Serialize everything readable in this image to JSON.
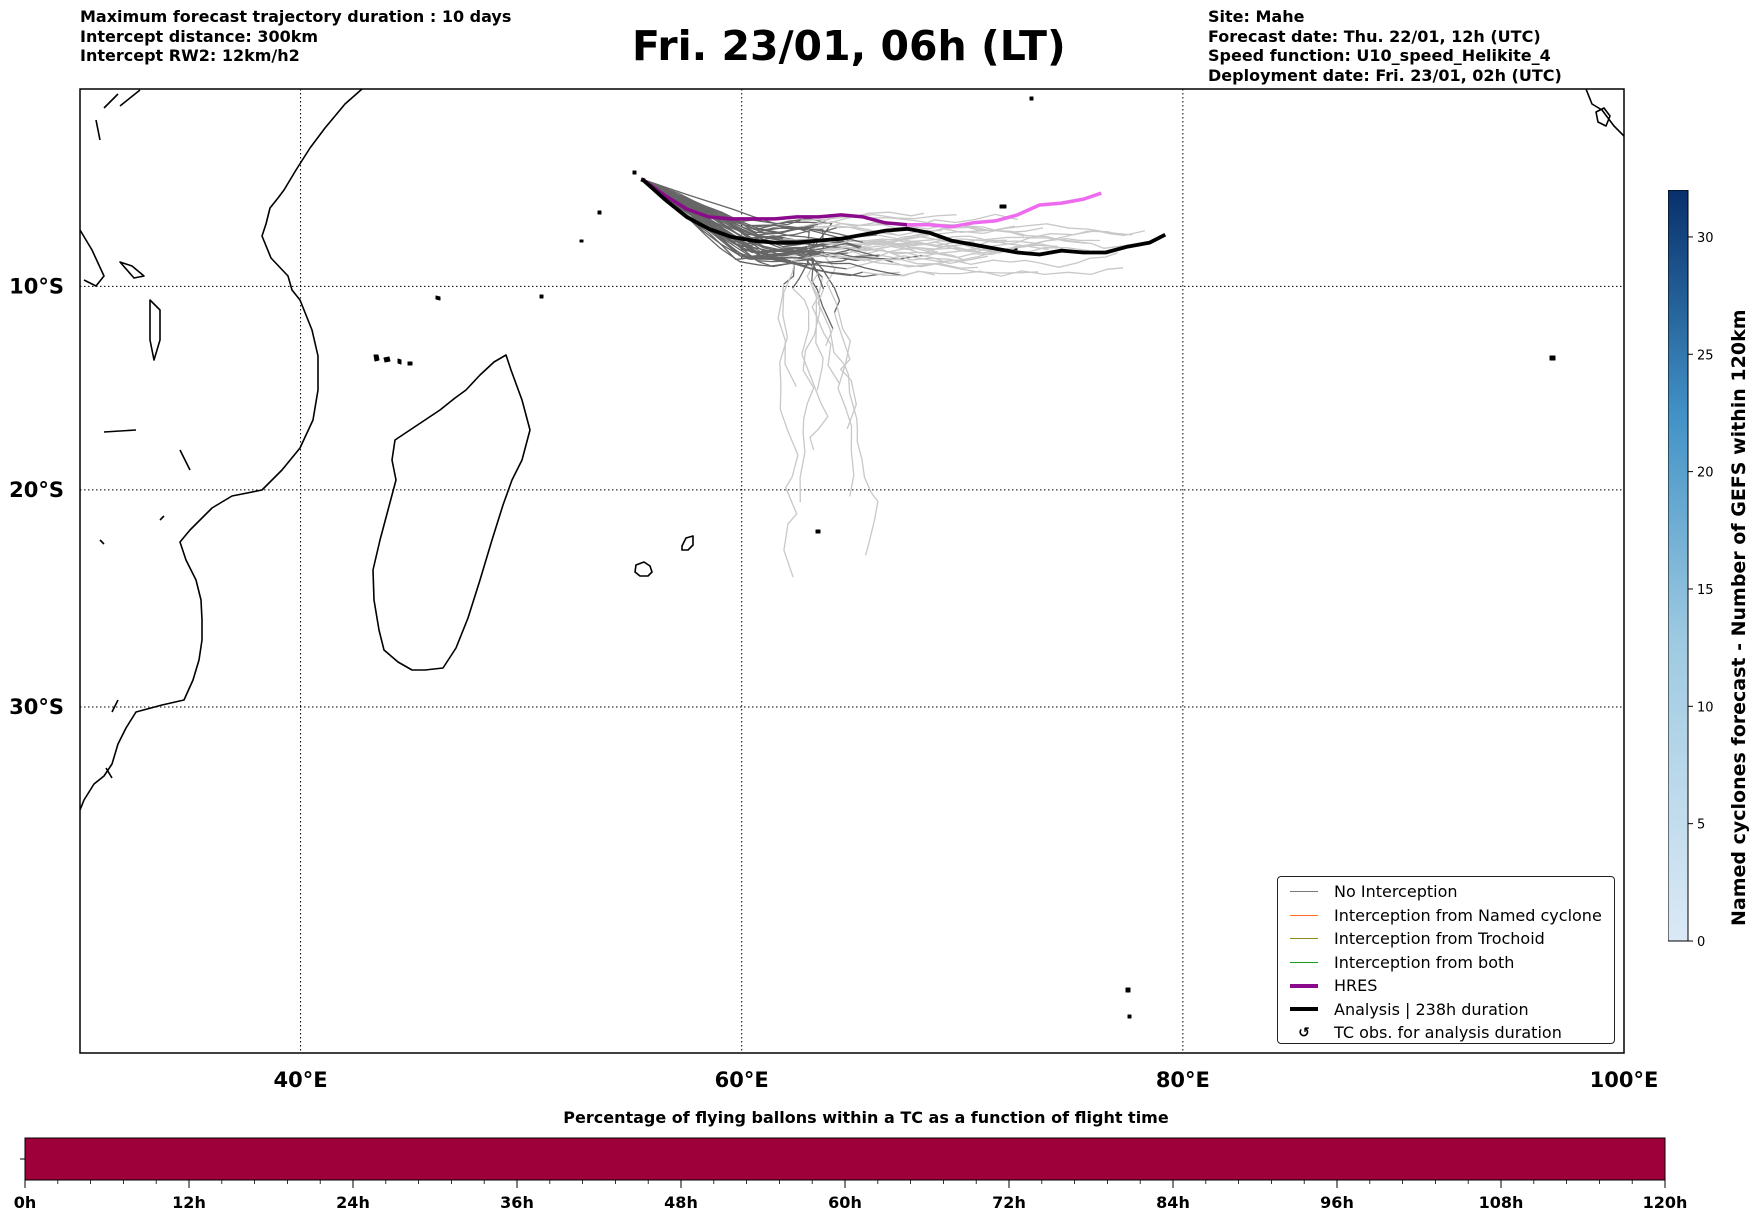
{
  "header": {
    "left_lines": [
      "Maximum forecast trajectory duration : 10 days",
      "Intercept distance: 300km",
      "Intercept RW2: 12km/h2"
    ],
    "title": "Fri. 23/01, 06h (LT)",
    "right_lines": [
      "Site: Mahe",
      "Forecast date: Thu. 22/01, 12h (UTC)",
      "Speed function: U10_speed_Helikite_4",
      "Deployment date: Fri. 23/01, 02h (UTC)"
    ]
  },
  "map": {
    "lon_range": [
      30,
      100
    ],
    "lat_range": [
      -44,
      0
    ],
    "lon_ticks": [
      {
        "value": 40,
        "label": "40°E"
      },
      {
        "value": 60,
        "label": "60°E"
      },
      {
        "value": 80,
        "label": "80°E"
      },
      {
        "value": 100,
        "label": "100°E"
      }
    ],
    "lat_ticks": [
      {
        "value": -10,
        "label": "10°S"
      },
      {
        "value": -20,
        "label": "20°S"
      },
      {
        "value": -30,
        "label": "30°S"
      }
    ],
    "gridlines": "dotted"
  },
  "legend": {
    "items": [
      {
        "label": "No Interception",
        "color": "#777777",
        "style": "thin"
      },
      {
        "label": "Interception from Named cyclone",
        "color": "#ff6a2a",
        "style": "thin"
      },
      {
        "label": "Interception from Trochoid",
        "color": "#8a8a1a",
        "style": "thin"
      },
      {
        "label": "Interception from both",
        "color": "#1a9a1a",
        "style": "thin"
      },
      {
        "label": "HRES",
        "color": "#8b0a8b",
        "style": "thick"
      },
      {
        "label": "Analysis | 238h duration",
        "color": "#000000",
        "style": "thick"
      },
      {
        "label": "TC obs. for analysis duration",
        "color": "#000000",
        "style": "symbol",
        "symbol": "↺"
      }
    ]
  },
  "colorbar_vertical": {
    "label": "Named cyclones forecast - Number of GEFS within 120km",
    "range": [
      0,
      32
    ],
    "ticks": [
      "0",
      "5",
      "10",
      "15",
      "20",
      "25",
      "30"
    ],
    "colors": [
      "#dbe9f6",
      "#08306b"
    ]
  },
  "colorbar_horizontal": {
    "title": "Percentage of flying ballons within a TC as a function of flight time",
    "fill_color": "#9e003a",
    "ticks": [
      "0h",
      "12h",
      "24h",
      "36h",
      "48h",
      "60h",
      "72h",
      "84h",
      "96h",
      "108h",
      "120h"
    ],
    "minor_per_major": 4
  },
  "trajectories": {
    "start": [
      55.5,
      -4.6
    ],
    "hres": [
      [
        55.5,
        -4.6
      ],
      [
        56.5,
        -5.4
      ],
      [
        57.5,
        -6.1
      ],
      [
        58.5,
        -6.5
      ],
      [
        59.5,
        -6.6
      ],
      [
        60.5,
        -6.6
      ],
      [
        61.5,
        -6.6
      ],
      [
        62.5,
        -6.5
      ],
      [
        63.5,
        -6.5
      ],
      [
        64.5,
        -6.4
      ],
      [
        65.5,
        -6.5
      ],
      [
        66.5,
        -6.8
      ],
      [
        67.5,
        -6.9
      ],
      [
        68.5,
        -6.9
      ],
      [
        69.5,
        -7.0
      ],
      [
        70.5,
        -6.8
      ],
      [
        71.5,
        -6.7
      ],
      [
        72.5,
        -6.4
      ],
      [
        73.5,
        -5.9
      ],
      [
        74.5,
        -5.8
      ],
      [
        75.5,
        -5.6
      ],
      [
        76.3,
        -5.3
      ]
    ],
    "hres_split_index": 12,
    "hres_late_color": "#ee6aee",
    "analysis": [
      [
        55.5,
        -4.6
      ],
      [
        56.5,
        -5.6
      ],
      [
        57.5,
        -6.5
      ],
      [
        58.5,
        -7.1
      ],
      [
        59.5,
        -7.5
      ],
      [
        60.5,
        -7.7
      ],
      [
        61.5,
        -7.8
      ],
      [
        62.5,
        -7.8
      ],
      [
        63.5,
        -7.7
      ],
      [
        64.5,
        -7.6
      ],
      [
        65.5,
        -7.4
      ],
      [
        66.5,
        -7.2
      ],
      [
        67.5,
        -7.1
      ],
      [
        68.5,
        -7.3
      ],
      [
        69.5,
        -7.7
      ],
      [
        70.5,
        -7.9
      ],
      [
        71.5,
        -8.1
      ],
      [
        72.5,
        -8.3
      ],
      [
        73.5,
        -8.4
      ],
      [
        74.5,
        -8.2
      ],
      [
        75.5,
        -8.3
      ],
      [
        76.5,
        -8.3
      ],
      [
        77.5,
        -8.0
      ],
      [
        78.5,
        -7.8
      ],
      [
        79.2,
        -7.4
      ]
    ]
  }
}
